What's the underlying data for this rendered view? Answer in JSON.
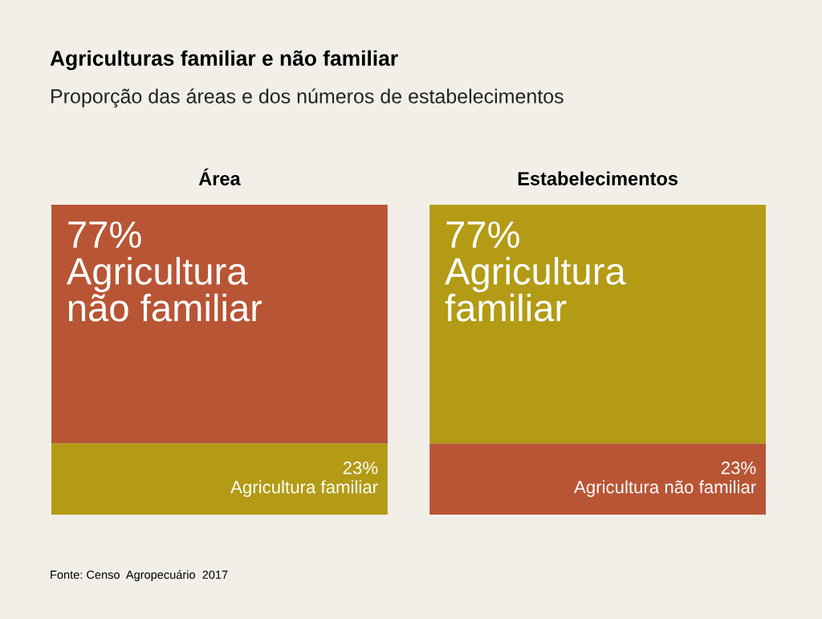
{
  "chart_data": {
    "type": "bar",
    "stacked": true,
    "title": "Agriculturas familiar e não familiar",
    "subtitle": "Proporção das áreas e dos números de estabelecimentos",
    "categories": [
      "Área",
      "Estabelecimentos"
    ],
    "ylim": [
      0,
      100
    ],
    "tick_labels": "x",
    "series": [
      {
        "colors": [
          "#b39b16",
          "#b85535"
        ],
        "values": [
          23,
          23
        ],
        "value_labels": [
          "23%",
          "23%"
        ]
      },
      {
        "colors": [
          "#b85535",
          "#b39b16"
        ],
        "values": [
          77,
          77
        ],
        "value_labels": [
          "77%",
          "77%"
        ]
      }
    ],
    "annotations": [
      {
        "text": "Agricultura familiar",
        "x": "Área",
        "y": 23
      },
      {
        "text": "Agricultura não familiar",
        "x": "Área",
        "y": 100
      },
      {
        "text": "Agricultura não familiar",
        "x": "Estabelecimentos",
        "y": 23
      },
      {
        "text": "Agricultura familiar",
        "x": "Estabelecimentos",
        "y": 100
      },
      "Fonte: Censo  Agropecuário  2017"
    ]
  }
}
